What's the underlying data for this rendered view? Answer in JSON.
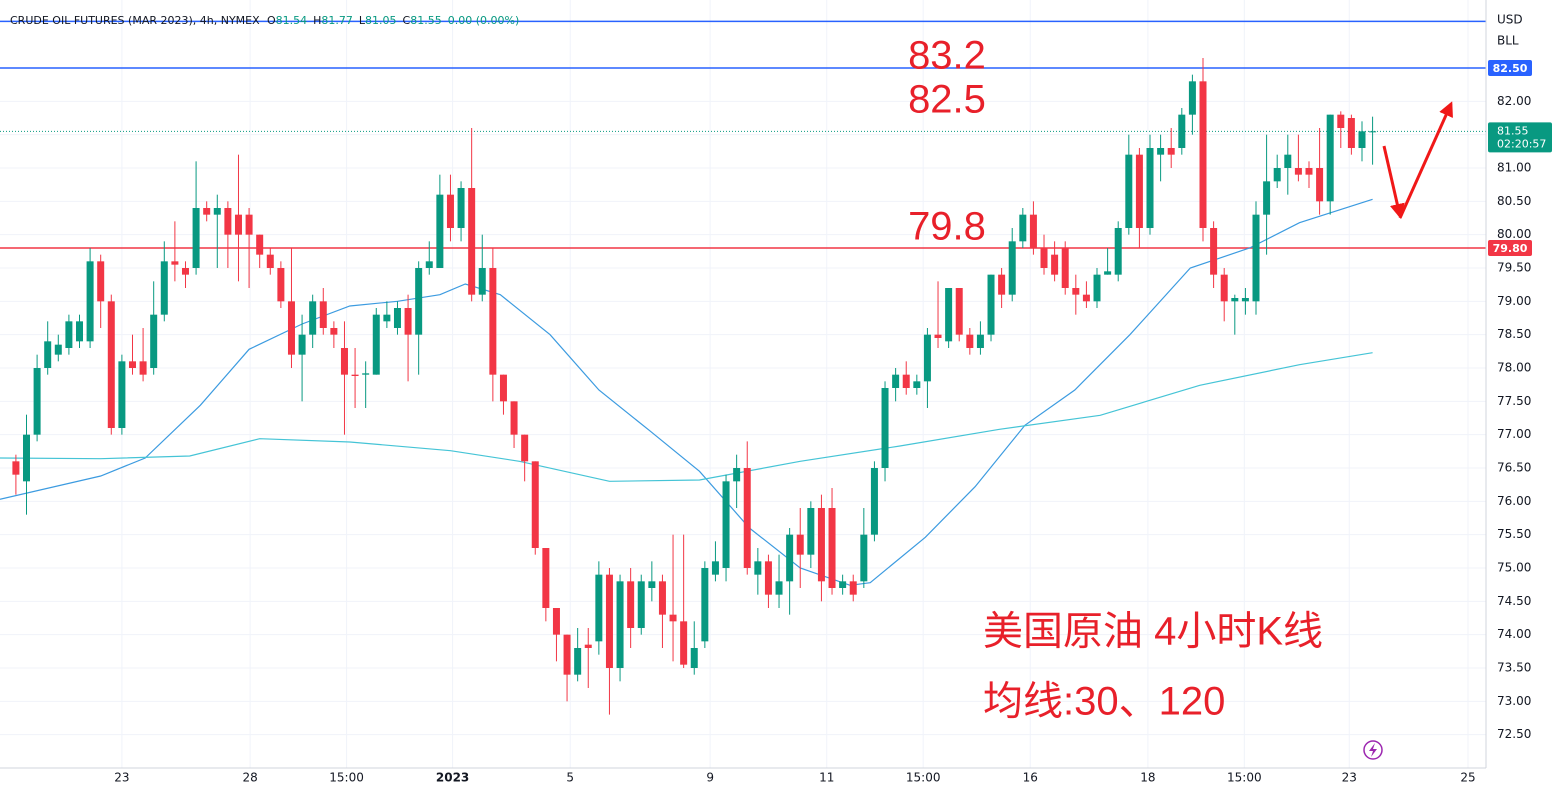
{
  "chart_data": {
    "type": "candlestick",
    "symbol": "CRUDE OIL FUTURES (MAR 2023), 4h, NYMEX",
    "legend": [
      {
        "key": "O",
        "value": "81.54"
      },
      {
        "key": "H",
        "value": "81.77"
      },
      {
        "key": "L",
        "value": "81.05"
      },
      {
        "key": "C",
        "value": "81.55"
      }
    ],
    "change": "0.00 (0.00%)",
    "currency": "USD",
    "unit": "BLL",
    "title": "美国原油 4小时K线",
    "subtitle": "均线:30、120",
    "up_color": "#089981",
    "down_color": "#f23645",
    "candles": {
      "open": [
        76.6,
        76.3,
        77.0,
        78.0,
        78.2,
        78.3,
        78.4,
        78.4,
        79.6,
        79.0,
        77.1,
        78.1,
        78.1,
        78.0,
        78.8,
        79.6,
        79.5,
        79.5,
        80.4,
        80.3,
        80.4,
        80.3,
        80.3,
        80.0,
        79.7,
        79.5,
        79.0,
        78.2,
        78.5,
        79.0,
        78.6,
        78.3,
        77.9,
        77.9,
        77.9,
        78.7,
        78.6,
        78.9,
        78.5,
        79.5,
        79.5,
        80.6,
        80.1,
        80.7,
        79.1,
        79.5,
        77.9,
        77.5,
        77.0,
        76.6,
        75.3,
        74.4,
        74.0,
        73.4,
        73.85,
        73.9,
        74.9,
        73.5,
        74.8,
        74.1,
        74.7,
        74.8,
        74.3,
        74.2,
        73.5,
        73.9,
        74.9,
        75.0,
        76.3,
        76.5,
        74.9,
        75.1,
        74.6,
        74.8,
        75.5,
        75.2,
        75.9,
        75.9,
        74.7,
        74.8,
        74.8,
        75.5,
        76.5,
        77.7,
        77.9,
        77.7,
        77.8,
        78.5,
        78.4,
        79.2,
        78.5,
        78.3,
        78.5,
        79.4,
        79.1,
        79.9,
        80.3,
        79.8,
        79.7,
        79.8,
        79.2,
        79.1,
        79.0,
        79.4,
        79.4,
        80.1,
        81.2,
        80.1,
        81.2,
        81.3,
        81.3,
        81.8,
        82.3,
        80.1,
        79.4,
        79.0,
        79.0,
        79.0,
        80.3,
        80.8,
        81.0,
        81.0,
        81.0,
        81.0,
        80.5,
        81.8,
        81.75,
        81.3,
        81.54
      ],
      "high": [
        76.7,
        77.3,
        78.2,
        78.7,
        78.5,
        78.8,
        78.8,
        79.8,
        79.7,
        79.1,
        78.2,
        78.5,
        78.6,
        79.3,
        79.9,
        80.2,
        79.6,
        81.1,
        80.5,
        80.6,
        80.5,
        81.2,
        80.4,
        80.0,
        79.8,
        79.6,
        79.8,
        78.8,
        79.1,
        79.2,
        78.7,
        78.7,
        78.3,
        78.1,
        78.9,
        79.0,
        79.0,
        79.1,
        79.6,
        79.9,
        80.9,
        80.9,
        80.8,
        81.6,
        80.0,
        79.8,
        77.9,
        77.5,
        77.0,
        76.6,
        75.3,
        74.4,
        74.0,
        74.1,
        74.1,
        75.1,
        75.0,
        74.9,
        75.0,
        74.9,
        75.1,
        74.9,
        75.5,
        75.5,
        74.2,
        75.1,
        75.4,
        76.4,
        76.7,
        76.9,
        75.3,
        75.2,
        75.2,
        75.6,
        75.9,
        76.0,
        76.1,
        76.2,
        74.9,
        74.9,
        75.9,
        76.6,
        77.8,
        78.0,
        78.1,
        77.9,
        78.6,
        79.3,
        79.2,
        79.2,
        78.6,
        78.7,
        79.4,
        79.5,
        80.1,
        80.4,
        80.5,
        80.0,
        79.9,
        79.9,
        79.4,
        79.3,
        79.5,
        79.8,
        80.2,
        81.5,
        81.3,
        81.5,
        81.5,
        81.6,
        81.9,
        82.4,
        82.65,
        80.2,
        79.5,
        79.1,
        79.2,
        80.5,
        81.5,
        81.2,
        81.5,
        81.5,
        81.1,
        81.6,
        81.8,
        81.85,
        81.8,
        81.7,
        81.77
      ],
      "low": [
        76.1,
        75.8,
        76.9,
        77.9,
        78.1,
        78.2,
        78.3,
        78.3,
        78.6,
        77.0,
        77.0,
        77.9,
        77.8,
        77.9,
        78.7,
        79.3,
        79.2,
        79.4,
        80.2,
        79.5,
        79.5,
        79.3,
        79.2,
        79.5,
        79.4,
        78.9,
        78.0,
        77.5,
        78.3,
        78.5,
        78.3,
        77.0,
        77.4,
        77.4,
        77.9,
        78.6,
        78.5,
        77.8,
        77.9,
        79.4,
        79.5,
        79.9,
        79.9,
        79.0,
        79.0,
        77.5,
        77.3,
        76.8,
        76.3,
        75.2,
        74.2,
        73.6,
        73.0,
        73.3,
        73.2,
        73.7,
        72.8,
        73.3,
        73.8,
        74.0,
        74.5,
        73.8,
        73.6,
        73.5,
        73.4,
        73.8,
        74.8,
        74.8,
        75.9,
        74.9,
        74.6,
        74.4,
        74.4,
        74.3,
        74.7,
        75.0,
        74.5,
        74.6,
        74.6,
        74.5,
        74.7,
        75.4,
        76.3,
        77.5,
        77.6,
        77.6,
        77.4,
        78.3,
        78.3,
        78.4,
        78.2,
        78.2,
        78.4,
        78.9,
        79.0,
        79.8,
        79.7,
        79.4,
        79.3,
        79.1,
        78.8,
        78.9,
        78.9,
        79.4,
        79.3,
        80.0,
        79.8,
        80.0,
        80.8,
        81.0,
        81.2,
        81.5,
        79.9,
        79.2,
        78.7,
        78.5,
        78.8,
        78.8,
        79.7,
        80.7,
        80.6,
        80.8,
        80.7,
        80.3,
        80.3,
        81.3,
        81.2,
        81.1,
        81.05
      ],
      "close": [
        76.4,
        77.0,
        78.0,
        78.4,
        78.35,
        78.7,
        78.7,
        79.6,
        79.0,
        77.1,
        78.1,
        78.0,
        77.9,
        78.8,
        79.6,
        79.55,
        79.4,
        80.4,
        80.3,
        80.4,
        80.0,
        80.0,
        80.0,
        79.7,
        79.5,
        79.0,
        78.2,
        78.5,
        79.0,
        78.6,
        78.5,
        77.9,
        77.88,
        77.92,
        78.8,
        78.8,
        78.9,
        78.5,
        79.5,
        79.6,
        80.6,
        80.1,
        80.7,
        79.1,
        79.5,
        77.9,
        77.5,
        77.0,
        76.6,
        75.3,
        74.4,
        74.0,
        73.4,
        73.8,
        73.8,
        74.9,
        73.5,
        74.8,
        74.1,
        74.8,
        74.8,
        74.3,
        74.2,
        73.55,
        73.8,
        75.0,
        75.1,
        76.3,
        76.5,
        75.0,
        75.1,
        74.6,
        74.8,
        75.5,
        75.2,
        75.9,
        74.8,
        74.7,
        74.8,
        74.6,
        75.5,
        76.5,
        77.7,
        77.9,
        77.7,
        77.8,
        78.5,
        78.45,
        79.2,
        78.5,
        78.3,
        78.5,
        79.4,
        79.1,
        79.9,
        80.3,
        79.8,
        79.5,
        79.4,
        79.2,
        79.1,
        79.0,
        79.4,
        79.45,
        80.1,
        81.2,
        80.1,
        81.3,
        81.3,
        81.2,
        81.8,
        82.3,
        80.1,
        79.4,
        79.0,
        79.05,
        79.05,
        80.3,
        80.8,
        81.0,
        81.2,
        80.9,
        80.9,
        80.5,
        81.8,
        81.6,
        81.3,
        81.55,
        81.55
      ]
    },
    "ma": [
      {
        "color": "#3c9be0",
        "x": [
          -1.5,
          8,
          12.2,
          17.4,
          22,
          27,
          31.5,
          36,
          40,
          42.4,
          45.7,
          50.4,
          55,
          59.8,
          64.5,
          69.2,
          74,
          78.7,
          80.6,
          85.8,
          90.5,
          95.2,
          99.9,
          105.1,
          110.8,
          116.4,
          121.1,
          128
        ],
        "values": [
          76.03,
          76.38,
          76.65,
          77.44,
          78.28,
          78.66,
          78.93,
          79.0,
          79.1,
          79.26,
          79.1,
          78.5,
          77.67,
          77.06,
          76.45,
          75.6,
          75.0,
          74.74,
          74.78,
          75.46,
          76.22,
          77.14,
          77.67,
          78.5,
          79.5,
          79.8,
          80.18,
          80.53
        ]
      },
      {
        "color": "#45c4d6",
        "x": [
          -1.5,
          8,
          16.4,
          23,
          31.5,
          41,
          47.5,
          56,
          64.5,
          74,
          83.4,
          92.8,
          102.3,
          111.7,
          121.1,
          128
        ],
        "values": [
          76.65,
          76.64,
          76.68,
          76.94,
          76.89,
          76.76,
          76.6,
          76.3,
          76.32,
          76.6,
          76.83,
          77.08,
          77.29,
          77.74,
          78.05,
          78.23
        ]
      }
    ],
    "hlines": [
      {
        "value": 83.2,
        "color": "#2962ff"
      },
      {
        "value": 82.5,
        "tag": "82.50",
        "color": "#2962ff"
      },
      {
        "value": 79.8,
        "tag": "79.80",
        "color": "#f23645"
      }
    ],
    "last_price": {
      "value": 81.55,
      "label": "81.55",
      "countdown": "02:20:57",
      "color": "#089981"
    },
    "xlim": [
      -1.5,
      138.7
    ],
    "xticks": [
      {
        "value": 10.0,
        "label": "23"
      },
      {
        "value": 22.1,
        "label": "28"
      },
      {
        "value": 31.2,
        "label": "15:00"
      },
      {
        "value": 41.2,
        "label": "2023"
      },
      {
        "value": 52.3,
        "label": "5"
      },
      {
        "value": 65.5,
        "label": "9"
      },
      {
        "value": 76.5,
        "label": "11"
      },
      {
        "value": 85.6,
        "label": "15:00"
      },
      {
        "value": 95.7,
        "label": "16"
      },
      {
        "value": 106.8,
        "label": "18"
      },
      {
        "value": 115.9,
        "label": "15:00"
      },
      {
        "value": 125.8,
        "label": "23"
      },
      {
        "value": 137.0,
        "label": "25"
      }
    ],
    "ylim": [
      72.0,
      83.52
    ],
    "yticks": [
      {
        "value": 72.5,
        "label": "72.50"
      },
      {
        "value": 73,
        "label": "73.00"
      },
      {
        "value": 73.5,
        "label": "73.50"
      },
      {
        "value": 74,
        "label": "74.00"
      },
      {
        "value": 74.5,
        "label": "74.50"
      },
      {
        "value": 75,
        "label": "75.00"
      },
      {
        "value": 75.5,
        "label": "75.50"
      },
      {
        "value": 76,
        "label": "76.00"
      },
      {
        "value": 76.5,
        "label": "76.50"
      },
      {
        "value": 77,
        "label": "77.00"
      },
      {
        "value": 77.5,
        "label": "77.50"
      },
      {
        "value": 78,
        "label": "78.00"
      },
      {
        "value": 78.5,
        "label": "78.50"
      },
      {
        "value": 79,
        "label": "79.00"
      },
      {
        "value": 79.5,
        "label": "79.50"
      },
      {
        "value": 80,
        "label": "80.00"
      },
      {
        "value": 80.5,
        "label": "80.50"
      },
      {
        "value": 81,
        "label": "81.00"
      },
      {
        "value": 81.5,
        "label": "81.50"
      },
      {
        "value": 82,
        "label": "82.00"
      }
    ],
    "grid": true
  }
}
